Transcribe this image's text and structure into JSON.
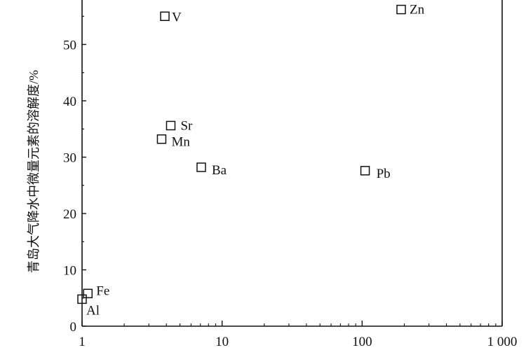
{
  "chart_data": {
    "type": "scatter",
    "title": "",
    "xlabel": "",
    "ylabel": "青岛大气降水中微量元素的溶解度/%",
    "x_scale": "log",
    "xlim": [
      1,
      1000
    ],
    "ylim": [
      0,
      58
    ],
    "x_ticks": [
      1,
      10,
      100,
      1000
    ],
    "x_tick_labels": [
      "1",
      "10",
      "100",
      "1 000"
    ],
    "y_ticks": [
      0,
      10,
      20,
      30,
      40,
      50
    ],
    "y_tick_labels": [
      "0",
      "10",
      "20",
      "30",
      "40",
      "50"
    ],
    "grid": false,
    "legend": "none",
    "marker": "open-square",
    "points": [
      {
        "label": "V",
        "x": 3.9,
        "y": 55.0
      },
      {
        "label": "Zn",
        "x": 190,
        "y": 56.2
      },
      {
        "label": "Sr",
        "x": 4.3,
        "y": 35.6
      },
      {
        "label": "Mn",
        "x": 3.7,
        "y": 33.2
      },
      {
        "label": "Ba",
        "x": 7.1,
        "y": 28.2
      },
      {
        "label": "Pb",
        "x": 105,
        "y": 27.6
      },
      {
        "label": "Fe",
        "x": 1.1,
        "y": 5.8
      },
      {
        "label": "Al",
        "x": 1.0,
        "y": 4.8
      }
    ]
  }
}
